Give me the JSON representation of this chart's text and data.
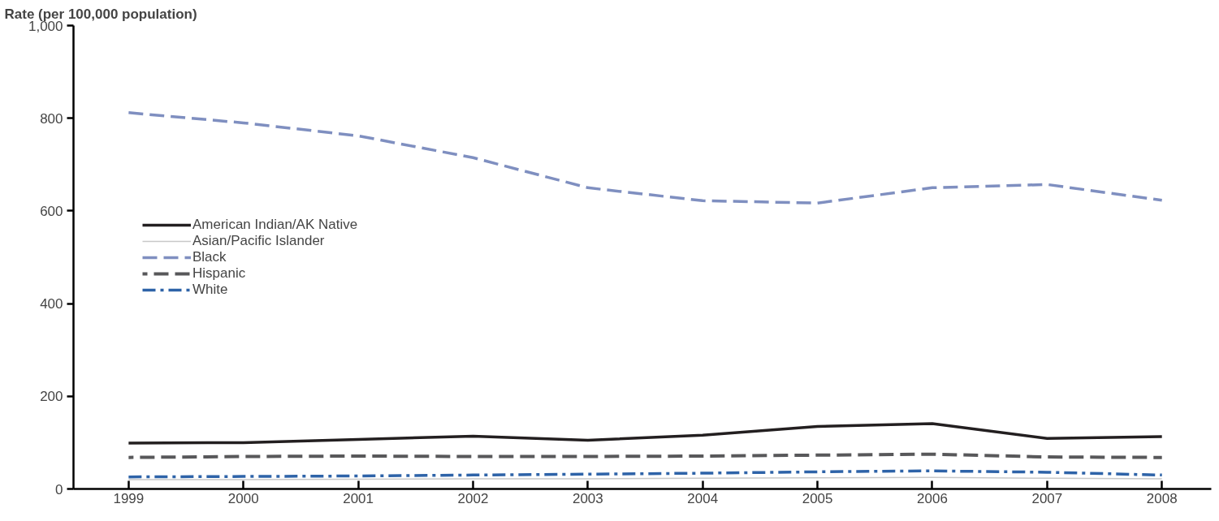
{
  "chart_data": {
    "type": "line",
    "ylabel": "Rate (per 100,000 population)",
    "x": [
      1999,
      2000,
      2001,
      2002,
      2003,
      2004,
      2005,
      2006,
      2007,
      2008
    ],
    "xlim": [
      1998.52,
      2008.43
    ],
    "xticks": [
      1999,
      2000,
      2001,
      2002,
      2003,
      2004,
      2005,
      2006,
      2007,
      2008
    ],
    "ylim": [
      0,
      1000
    ],
    "yticks": [
      0,
      200,
      400,
      600,
      800,
      {
        "value": 1000,
        "label": "1,000"
      }
    ],
    "grid": false,
    "legend": "left",
    "series": [
      {
        "name": "American Indian/AK Native",
        "color": "#231f20",
        "line_style": "solid",
        "values": [
          99,
          100,
          107,
          114,
          105,
          116,
          135,
          141,
          109,
          113
        ]
      },
      {
        "name": "Asian/Pacific Islander",
        "color": "#c8c8c8",
        "line_style": "solid",
        "values": [
          20,
          20,
          21,
          22,
          22,
          23,
          24,
          25,
          23,
          22
        ]
      },
      {
        "name": "Black",
        "color": "#7f8fc0",
        "line_style": "dashed",
        "values": [
          812,
          790,
          762,
          715,
          650,
          622,
          617,
          650,
          657,
          623
        ]
      },
      {
        "name": "Hispanic",
        "color": "#58585a",
        "line_style": "dashed",
        "values": [
          68,
          70,
          71,
          70,
          70,
          71,
          73,
          75,
          69,
          68
        ]
      },
      {
        "name": "White",
        "color": "#2e63a8",
        "line_style": "dashdot",
        "values": [
          26,
          27,
          28,
          30,
          32,
          34,
          37,
          39,
          36,
          30
        ]
      }
    ]
  }
}
